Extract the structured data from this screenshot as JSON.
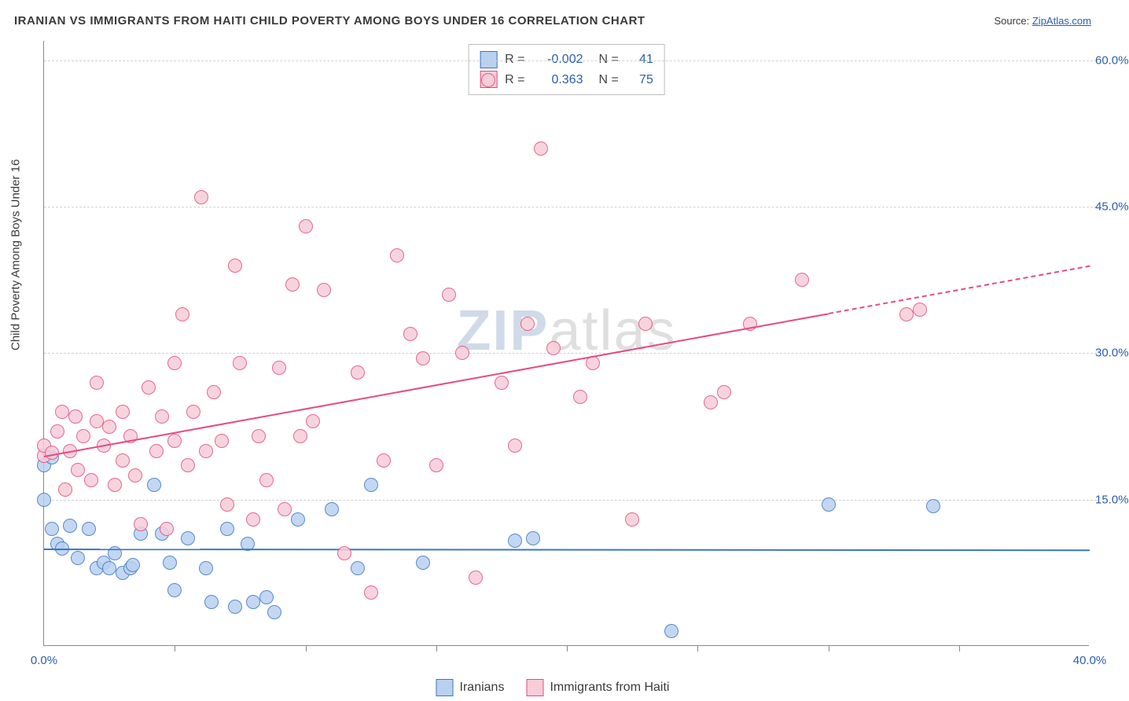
{
  "header": {
    "title": "IRANIAN VS IMMIGRANTS FROM HAITI CHILD POVERTY AMONG BOYS UNDER 16 CORRELATION CHART",
    "source_prefix": "Source: ",
    "source_name": "ZipAtlas.com"
  },
  "watermark": {
    "z": "ZIP",
    "rest": "atlas"
  },
  "chart": {
    "type": "scatter",
    "background_color": "#ffffff",
    "grid_color": "#d0d0d0",
    "axis_color": "#888888",
    "y_axis_title": "Child Poverty Among Boys Under 16",
    "xlim": [
      0,
      40
    ],
    "ylim": [
      0,
      62
    ],
    "xtick_major": [
      0,
      40
    ],
    "xtick_minor": [
      5,
      10,
      15,
      20,
      25,
      30,
      35
    ],
    "xtick_labels": {
      "0": "0.0%",
      "40": "40.0%"
    },
    "ytick_major": [
      15,
      30,
      45,
      60
    ],
    "ytick_labels": {
      "15": "15.0%",
      "30": "30.0%",
      "45": "45.0%",
      "60": "60.0%"
    },
    "tick_label_color": "#2a5db0",
    "tick_label_fontsize": 15,
    "point_radius": 9,
    "point_stroke_width": 1,
    "series": [
      {
        "key": "iranians",
        "label": "Iranians",
        "fill": "#b9d1f0",
        "stroke": "#3b76c4",
        "R": "-0.002",
        "N": "41",
        "trend": {
          "y_at_x0": 10.0,
          "y_at_x40": 9.9,
          "solid_until_x": 40,
          "color": "#3b76c4"
        },
        "points": [
          [
            0.0,
            18.5
          ],
          [
            0.0,
            15.0
          ],
          [
            0.3,
            12.0
          ],
          [
            0.3,
            19.3
          ],
          [
            0.5,
            10.5
          ],
          [
            0.7,
            10.0
          ],
          [
            1.0,
            12.3
          ],
          [
            1.3,
            9.0
          ],
          [
            1.7,
            12.0
          ],
          [
            2.0,
            8.0
          ],
          [
            2.3,
            8.5
          ],
          [
            2.5,
            8.0
          ],
          [
            2.7,
            9.5
          ],
          [
            3.0,
            7.5
          ],
          [
            3.3,
            8.0
          ],
          [
            3.4,
            8.3
          ],
          [
            3.7,
            11.5
          ],
          [
            4.2,
            16.5
          ],
          [
            4.5,
            11.5
          ],
          [
            4.8,
            8.5
          ],
          [
            5.0,
            5.7
          ],
          [
            5.5,
            11.0
          ],
          [
            6.2,
            8.0
          ],
          [
            6.4,
            4.5
          ],
          [
            7.0,
            12.0
          ],
          [
            7.3,
            4.0
          ],
          [
            7.8,
            10.5
          ],
          [
            8.0,
            4.5
          ],
          [
            8.5,
            5.0
          ],
          [
            8.8,
            3.5
          ],
          [
            9.7,
            13.0
          ],
          [
            11.0,
            14.0
          ],
          [
            12.0,
            8.0
          ],
          [
            12.5,
            16.5
          ],
          [
            14.5,
            8.5
          ],
          [
            18.0,
            10.8
          ],
          [
            18.7,
            11.0
          ],
          [
            24.0,
            1.5
          ],
          [
            30.0,
            14.5
          ],
          [
            34.0,
            14.3
          ]
        ]
      },
      {
        "key": "haiti",
        "label": "Immigrants from Haiti",
        "fill": "#f6cdd8",
        "stroke": "#e64b81",
        "R": "0.363",
        "N": "75",
        "trend": {
          "y_at_x0": 19.5,
          "y_at_x40": 39.0,
          "solid_until_x": 30,
          "color": "#e64b81"
        },
        "points": [
          [
            0.0,
            19.5
          ],
          [
            0.0,
            20.5
          ],
          [
            0.3,
            19.8
          ],
          [
            0.5,
            22.0
          ],
          [
            0.7,
            24.0
          ],
          [
            0.8,
            16.0
          ],
          [
            1.0,
            20.0
          ],
          [
            1.2,
            23.5
          ],
          [
            1.3,
            18.0
          ],
          [
            1.5,
            21.5
          ],
          [
            1.8,
            17.0
          ],
          [
            2.0,
            23.0
          ],
          [
            2.0,
            27.0
          ],
          [
            2.3,
            20.5
          ],
          [
            2.5,
            22.5
          ],
          [
            2.7,
            16.5
          ],
          [
            3.0,
            19.0
          ],
          [
            3.0,
            24.0
          ],
          [
            3.3,
            21.5
          ],
          [
            3.5,
            17.5
          ],
          [
            3.7,
            12.5
          ],
          [
            4.0,
            26.5
          ],
          [
            4.3,
            20.0
          ],
          [
            4.5,
            23.5
          ],
          [
            4.7,
            12.0
          ],
          [
            5.0,
            29.0
          ],
          [
            5.0,
            21.0
          ],
          [
            5.3,
            34.0
          ],
          [
            5.5,
            18.5
          ],
          [
            5.7,
            24.0
          ],
          [
            6.0,
            46.0
          ],
          [
            6.2,
            20.0
          ],
          [
            6.5,
            26.0
          ],
          [
            6.8,
            21.0
          ],
          [
            7.0,
            14.5
          ],
          [
            7.3,
            39.0
          ],
          [
            7.5,
            29.0
          ],
          [
            8.0,
            13.0
          ],
          [
            8.2,
            21.5
          ],
          [
            8.5,
            17.0
          ],
          [
            9.0,
            28.5
          ],
          [
            9.2,
            14.0
          ],
          [
            9.5,
            37.0
          ],
          [
            9.8,
            21.5
          ],
          [
            10.0,
            43.0
          ],
          [
            10.3,
            23.0
          ],
          [
            10.7,
            36.5
          ],
          [
            11.5,
            9.5
          ],
          [
            12.0,
            28.0
          ],
          [
            12.5,
            5.5
          ],
          [
            13.0,
            19.0
          ],
          [
            13.5,
            40.0
          ],
          [
            14.0,
            32.0
          ],
          [
            14.5,
            29.5
          ],
          [
            15.0,
            18.5
          ],
          [
            15.5,
            36.0
          ],
          [
            16.0,
            30.0
          ],
          [
            16.5,
            7.0
          ],
          [
            17.0,
            58.0
          ],
          [
            17.5,
            27.0
          ],
          [
            18.0,
            20.5
          ],
          [
            18.5,
            33.0
          ],
          [
            19.0,
            51.0
          ],
          [
            19.5,
            30.5
          ],
          [
            20.5,
            25.5
          ],
          [
            21.0,
            29.0
          ],
          [
            22.5,
            13.0
          ],
          [
            23.0,
            33.0
          ],
          [
            25.5,
            25.0
          ],
          [
            26.0,
            26.0
          ],
          [
            27.0,
            33.0
          ],
          [
            29.0,
            37.5
          ],
          [
            33.0,
            34.0
          ],
          [
            33.5,
            34.5
          ]
        ]
      }
    ]
  },
  "bottom_legend": [
    {
      "swatch_fill": "#b9d1f0",
      "swatch_stroke": "#3b76c4",
      "label": "Iranians"
    },
    {
      "swatch_fill": "#f6cdd8",
      "swatch_stroke": "#e64b81",
      "label": "Immigrants from Haiti"
    }
  ],
  "stats_legend": {
    "R_label": "R = ",
    "N_label": "N = "
  }
}
